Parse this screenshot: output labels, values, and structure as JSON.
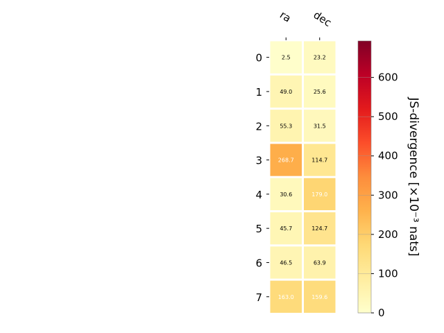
{
  "chart_data": {
    "type": "heatmap",
    "columns": [
      "ra",
      "dec"
    ],
    "rows": [
      "0",
      "1",
      "2",
      "3",
      "4",
      "5",
      "6",
      "7"
    ],
    "values": [
      [
        2.5,
        23.2
      ],
      [
        49.0,
        25.6
      ],
      [
        55.3,
        31.5
      ],
      [
        268.7,
        114.7
      ],
      [
        30.6,
        179.0
      ],
      [
        45.7,
        124.7
      ],
      [
        46.5,
        63.9
      ],
      [
        163.0,
        159.6
      ]
    ],
    "value_labels": [
      [
        "2.5",
        "23.2"
      ],
      [
        "49.0",
        "25.6"
      ],
      [
        "55.3",
        "31.5"
      ],
      [
        "268.7",
        "114.7"
      ],
      [
        "30.6",
        "179.0"
      ],
      [
        "45.7",
        "124.7"
      ],
      [
        "46.5",
        "63.9"
      ],
      [
        "163.0",
        "159.6"
      ]
    ],
    "colorbar": {
      "label": "JS-divergence [×10⁻³ nats]",
      "range": [
        0,
        693
      ],
      "ticks": [
        0,
        100,
        200,
        300,
        400,
        500,
        600
      ],
      "tick_labels": [
        "0",
        "100",
        "200",
        "300",
        "400",
        "500",
        "600"
      ],
      "colormap": "YlOrRd"
    },
    "colors": {
      "text_dark": "#000000",
      "text_light": "#ffffff",
      "cell_gap": "#ffffff"
    }
  }
}
